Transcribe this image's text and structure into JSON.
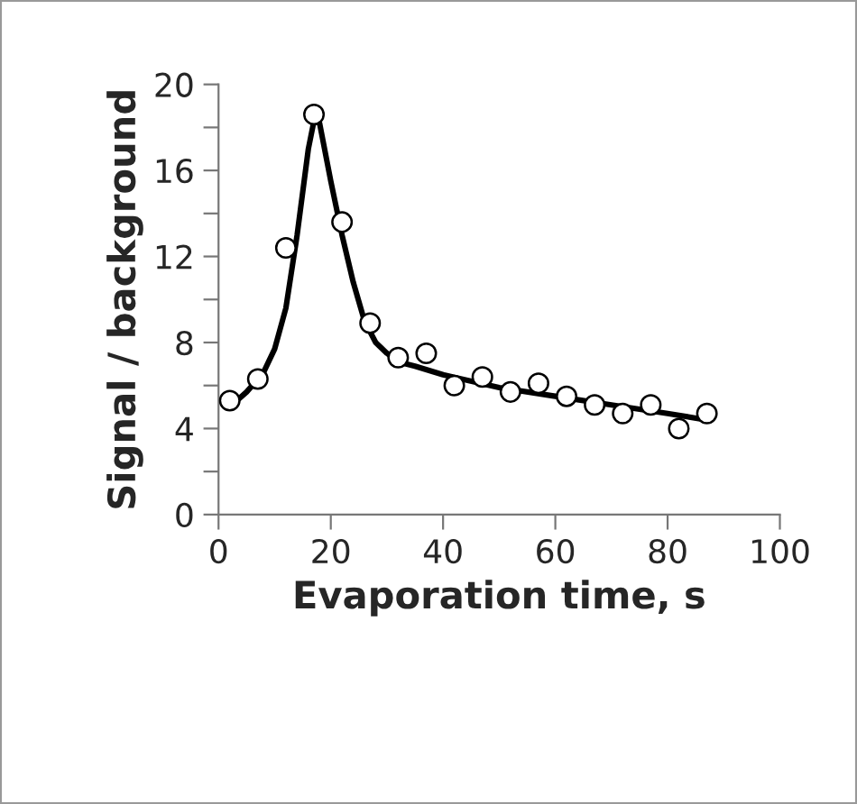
{
  "chart_data": {
    "type": "scatter",
    "xlabel": "Evaporation time, s",
    "ylabel": "Signal / background",
    "xlim": [
      0,
      100
    ],
    "ylim": [
      0,
      20
    ],
    "xticks": [
      0,
      20,
      40,
      60,
      80,
      100
    ],
    "yticks": [
      0,
      {
        "value": 2,
        "label": null
      },
      4,
      {
        "value": 6,
        "label": null
      },
      8,
      {
        "value": 10,
        "label": null
      },
      12,
      {
        "value": 14,
        "label": null
      },
      16,
      {
        "value": 18,
        "label": null
      },
      20
    ],
    "grid": false,
    "marker": "circle",
    "series": [
      {
        "type": "line",
        "color": "#000000",
        "marker": "none",
        "line_style": "solid",
        "x": [
          2,
          5,
          8,
          10,
          12,
          14,
          16,
          17,
          18,
          20,
          22,
          24,
          26,
          28,
          30,
          32,
          35,
          40,
          50,
          60,
          70,
          80,
          87
        ],
        "values": [
          5.0,
          5.7,
          6.6,
          7.7,
          9.6,
          13,
          17,
          18.3,
          18.2,
          15.5,
          13,
          10.8,
          9.0,
          8.0,
          7.5,
          7.1,
          6.9,
          6.5,
          5.9,
          5.5,
          5.1,
          4.7,
          4.4
        ]
      },
      {
        "color": "#ffffff",
        "x": [
          2,
          7,
          12,
          17,
          22,
          27,
          32,
          37,
          42,
          47,
          52,
          57,
          62,
          67,
          72,
          77,
          82,
          87
        ],
        "values": [
          5.3,
          6.3,
          12.4,
          18.6,
          13.6,
          8.9,
          7.3,
          7.5,
          6.0,
          6.4,
          5.7,
          6.1,
          5.5,
          5.1,
          4.7,
          5.1,
          4.0,
          4.7
        ]
      }
    ]
  }
}
